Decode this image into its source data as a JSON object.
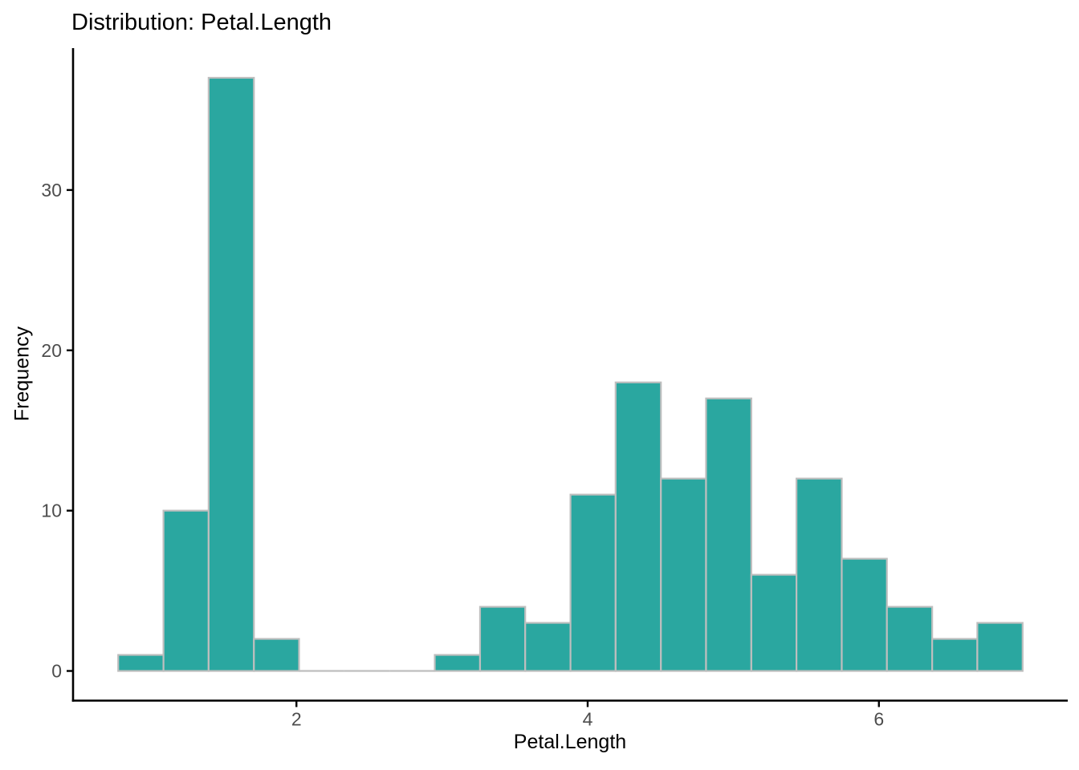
{
  "chart_data": {
    "type": "bar",
    "subtype": "histogram",
    "title": "Distribution: Petal.Length",
    "xlabel": "Petal.Length",
    "ylabel": "Frequency",
    "bin_edges": [
      0.776,
      1.087,
      1.397,
      1.708,
      2.018,
      2.329,
      2.639,
      2.95,
      3.261,
      3.571,
      3.882,
      4.192,
      4.503,
      4.813,
      5.124,
      5.434,
      5.745,
      6.055,
      6.366,
      6.676,
      6.987
    ],
    "counts": [
      1,
      10,
      37,
      2,
      0,
      0,
      0,
      1,
      4,
      3,
      11,
      18,
      12,
      17,
      6,
      12,
      7,
      4,
      2,
      3
    ],
    "x_ticks": [
      "2",
      "4",
      "6"
    ],
    "x_tick_values": [
      2,
      4,
      6
    ],
    "y_ticks": [
      "0",
      "10",
      "20",
      "30"
    ],
    "y_tick_values": [
      0,
      10,
      20,
      30
    ],
    "xlim": [
      0.466,
      7.297
    ],
    "ylim": [
      -1.85,
      38.85
    ],
    "grid": false,
    "legend": false,
    "colors": {
      "background": "#FFFFFF",
      "bar_fill": "#2AA7A0",
      "bar_stroke": "#BEBEBE",
      "axis_line": "#000000",
      "tick_mark": "#000000",
      "tick_label": "#4D4D4D",
      "title_text": "#000000"
    }
  }
}
